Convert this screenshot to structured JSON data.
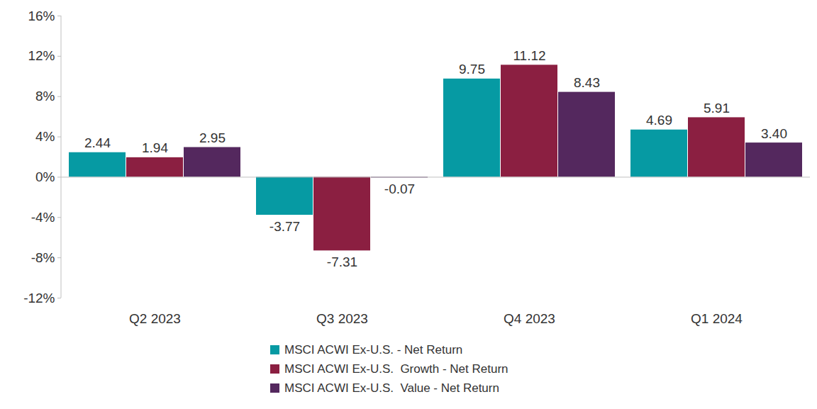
{
  "chart_data": {
    "type": "bar",
    "categories": [
      "Q2 2023",
      "Q3 2023",
      "Q4 2023",
      "Q1 2024"
    ],
    "series": [
      {
        "name": "MSCI ACWI Ex-U.S. - Net Return",
        "color": "#069aa3",
        "values": [
          2.44,
          -3.77,
          9.75,
          4.69
        ],
        "value_labels": [
          "2.44",
          "-3.77",
          "9.75",
          "4.69"
        ]
      },
      {
        "name": "MSCI ACWI Ex-U.S.  Growth - Net Return",
        "color": "#8b1f41",
        "values": [
          1.94,
          -7.31,
          11.12,
          5.91
        ],
        "value_labels": [
          "1.94",
          "-7.31",
          "11.12",
          "5.91"
        ]
      },
      {
        "name": "MSCI ACWI Ex-U.S.  Value - Net Return",
        "color": "#54285e",
        "values": [
          2.95,
          -0.07,
          8.43,
          3.4
        ],
        "value_labels": [
          "2.95",
          "-0.07",
          "8.43",
          "3.40"
        ]
      }
    ],
    "ylim": [
      -12,
      16
    ],
    "yticks": [
      {
        "value": -12,
        "label": "-12%"
      },
      {
        "value": -8,
        "label": "-8%"
      },
      {
        "value": -4,
        "label": "-4%"
      },
      {
        "value": 0,
        "label": "0%"
      },
      {
        "value": 4,
        "label": "4%"
      },
      {
        "value": 8,
        "label": "8%"
      },
      {
        "value": 12,
        "label": "12%"
      },
      {
        "value": 16,
        "label": "16%"
      }
    ],
    "grid": false,
    "data_labels": true,
    "legend": "bottom"
  }
}
